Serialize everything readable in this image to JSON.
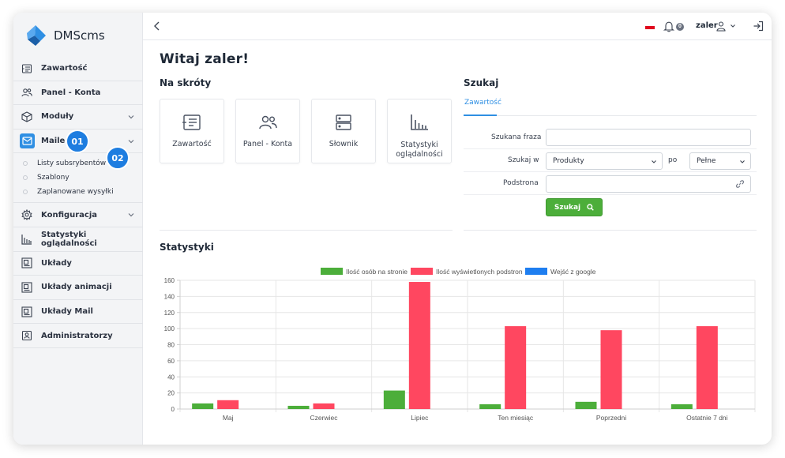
{
  "brand": {
    "name": "DMScms"
  },
  "sidebar": {
    "items": [
      {
        "label": "Zawartość",
        "icon": "content-list-icon",
        "chevron": false
      },
      {
        "label": "Panel - Konta",
        "icon": "users-icon",
        "chevron": false
      },
      {
        "label": "Moduły",
        "icon": "cube-icon",
        "chevron": true
      },
      {
        "label": "Maile",
        "icon": "mail-icon",
        "chevron": true,
        "active": true
      },
      {
        "label": "Konfiguracja",
        "icon": "gear-icon",
        "chevron": true
      },
      {
        "label": "Statystyki oglądalności",
        "icon": "bar-chart-icon",
        "chevron": false
      },
      {
        "label": "Układy",
        "icon": "layout-icon",
        "chevron": false
      },
      {
        "label": "Układy animacji",
        "icon": "layout-animation-icon",
        "chevron": false
      },
      {
        "label": "Układy Mail",
        "icon": "layout-mail-icon",
        "chevron": false
      },
      {
        "label": "Administratorzy",
        "icon": "admin-icon",
        "chevron": false
      }
    ],
    "submenu": [
      "Listy subsrybentów",
      "Szablony",
      "Zaplanowane wysyłki"
    ],
    "badges": [
      "01",
      "02"
    ]
  },
  "topbar": {
    "notifications": "0",
    "user": "zaler"
  },
  "main": {
    "welcome": "Witaj zaler!",
    "shortcuts_title": "Na skróty",
    "shortcuts": [
      {
        "label": "Zawartość",
        "icon": "content-list-icon"
      },
      {
        "label": "Panel - Konta",
        "icon": "users-icon"
      },
      {
        "label": "Słownik",
        "icon": "server-icon"
      },
      {
        "label": "Statystyki oglądalności",
        "label_line1": "Statystyki",
        "label_line2": "oglądalności",
        "icon": "bar-chart-icon"
      }
    ],
    "search_title": "Szukaj",
    "search": {
      "tab": "Zawartość",
      "phrase_label": "Szukana fraza",
      "phrase_value": "",
      "in_label": "Szukaj w",
      "in_value": "Produkty",
      "po_label": "po",
      "mode_value": "Pełne",
      "subpage_label": "Podstrona",
      "subpage_value": "",
      "button": "Szukaj"
    },
    "stats_title": "Statystyki"
  },
  "colors": {
    "accent": "#2f8fe3",
    "green": "#4cae3a",
    "red": "#ff4760",
    "blue": "#1e7ef0"
  },
  "chart_data": {
    "type": "bar",
    "categories": [
      "Maj",
      "Czerwiec",
      "Lipiec",
      "Ten miesiąc",
      "Poprzedni",
      "Ostatnie 7 dni"
    ],
    "series": [
      {
        "name": "Ilość osób na stronie",
        "color": "#4cae3a",
        "values": [
          7,
          4,
          23,
          6,
          9,
          6
        ]
      },
      {
        "name": "Ilość wyświetlonych podstron",
        "color": "#ff4760",
        "values": [
          11,
          7,
          158,
          103,
          98,
          103
        ]
      },
      {
        "name": "Wejść z google",
        "color": "#1e7ef0",
        "values": [
          0,
          0,
          0,
          0,
          0,
          0
        ]
      }
    ],
    "ylim": [
      0,
      160
    ],
    "yticks": [
      0,
      20,
      40,
      60,
      80,
      100,
      120,
      140,
      160
    ],
    "grid": true,
    "legend": "top"
  }
}
